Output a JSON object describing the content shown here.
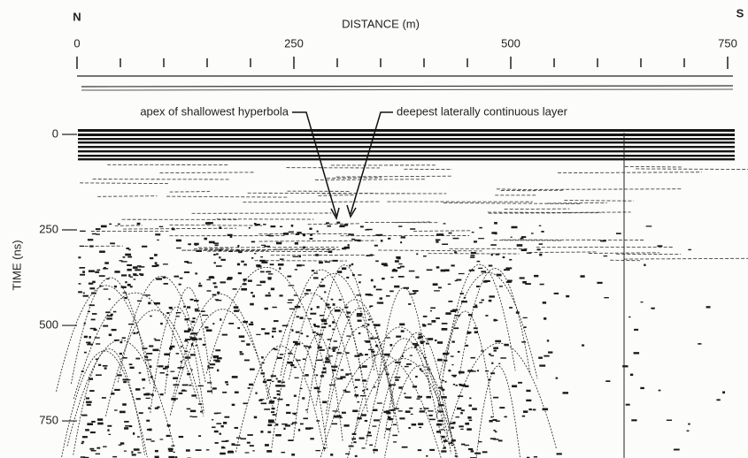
{
  "chart_data": {
    "type": "radargram",
    "x_label": "DISTANCE (m)",
    "y_label": "TIME (ns)",
    "left_end_label": "N",
    "right_end_label": "S",
    "xlim": [
      0,
      750
    ],
    "xticks": [
      0,
      250,
      500,
      750
    ],
    "xminor_ticks": [
      50,
      100,
      150,
      200,
      300,
      350,
      400,
      450,
      550,
      600,
      650,
      700
    ],
    "ylim": [
      0,
      847
    ],
    "yticks": [
      0,
      250,
      500,
      750
    ],
    "annotations": [
      "apex of shallowest hyperbola",
      "deepest laterally continuous layer"
    ]
  }
}
